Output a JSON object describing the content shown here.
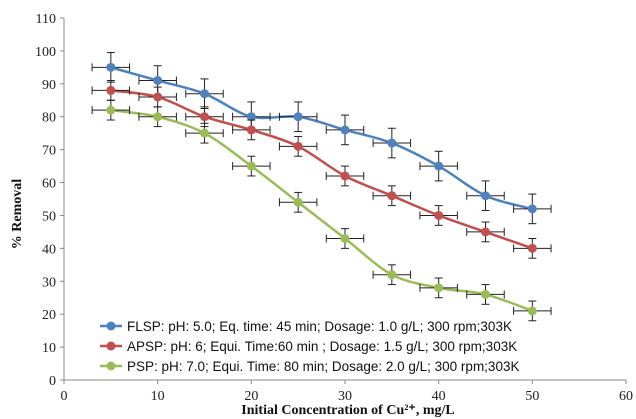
{
  "chart_data": {
    "type": "line",
    "xlabel": "Initial Concentration of Cu²⁺,  mg/L",
    "ylabel": "% Removal",
    "xlim": [
      0,
      60
    ],
    "ylim": [
      0,
      110
    ],
    "xticks": [
      0,
      10,
      20,
      30,
      40,
      50,
      60
    ],
    "yticks": [
      0,
      10,
      20,
      30,
      40,
      50,
      60,
      70,
      80,
      90,
      100,
      110
    ],
    "grid": false,
    "smooth": true,
    "error_bars": true,
    "legend_position": "bottom-left inside plot",
    "series": [
      {
        "name": "FLSP: pH: 5.0; Eq. time: 45 min;  Dosage: 1.0 g/L;  300 rpm;303K",
        "color": "#4F81BD",
        "x": [
          5,
          10,
          15,
          20,
          25,
          30,
          35,
          40,
          45,
          50
        ],
        "y": [
          95,
          91,
          87,
          80,
          80,
          76,
          72,
          65,
          56,
          52
        ],
        "xerr": 2,
        "yerr": 4.5
      },
      {
        "name": "APSP: pH: 6;  Equi. Time:60 min ; Dosage: 1.5 g/L;  300 rpm;303K",
        "color": "#C0504D",
        "x": [
          5,
          10,
          15,
          20,
          25,
          30,
          35,
          40,
          45,
          50
        ],
        "y": [
          88,
          86,
          80,
          76,
          71,
          62,
          56,
          50,
          45,
          40
        ],
        "xerr": 2,
        "yerr": 3
      },
      {
        "name": "PSP:  pH: 7.0; Equi. Time: 80 min; Dosage: 2.0 g/L;   300 rpm;303K",
        "color": "#9BBB59",
        "x": [
          5,
          10,
          15,
          20,
          25,
          30,
          35,
          40,
          45,
          50
        ],
        "y": [
          82,
          80,
          75,
          65,
          54,
          43,
          32,
          28,
          26,
          21
        ],
        "xerr": 2,
        "yerr": 3
      }
    ]
  }
}
